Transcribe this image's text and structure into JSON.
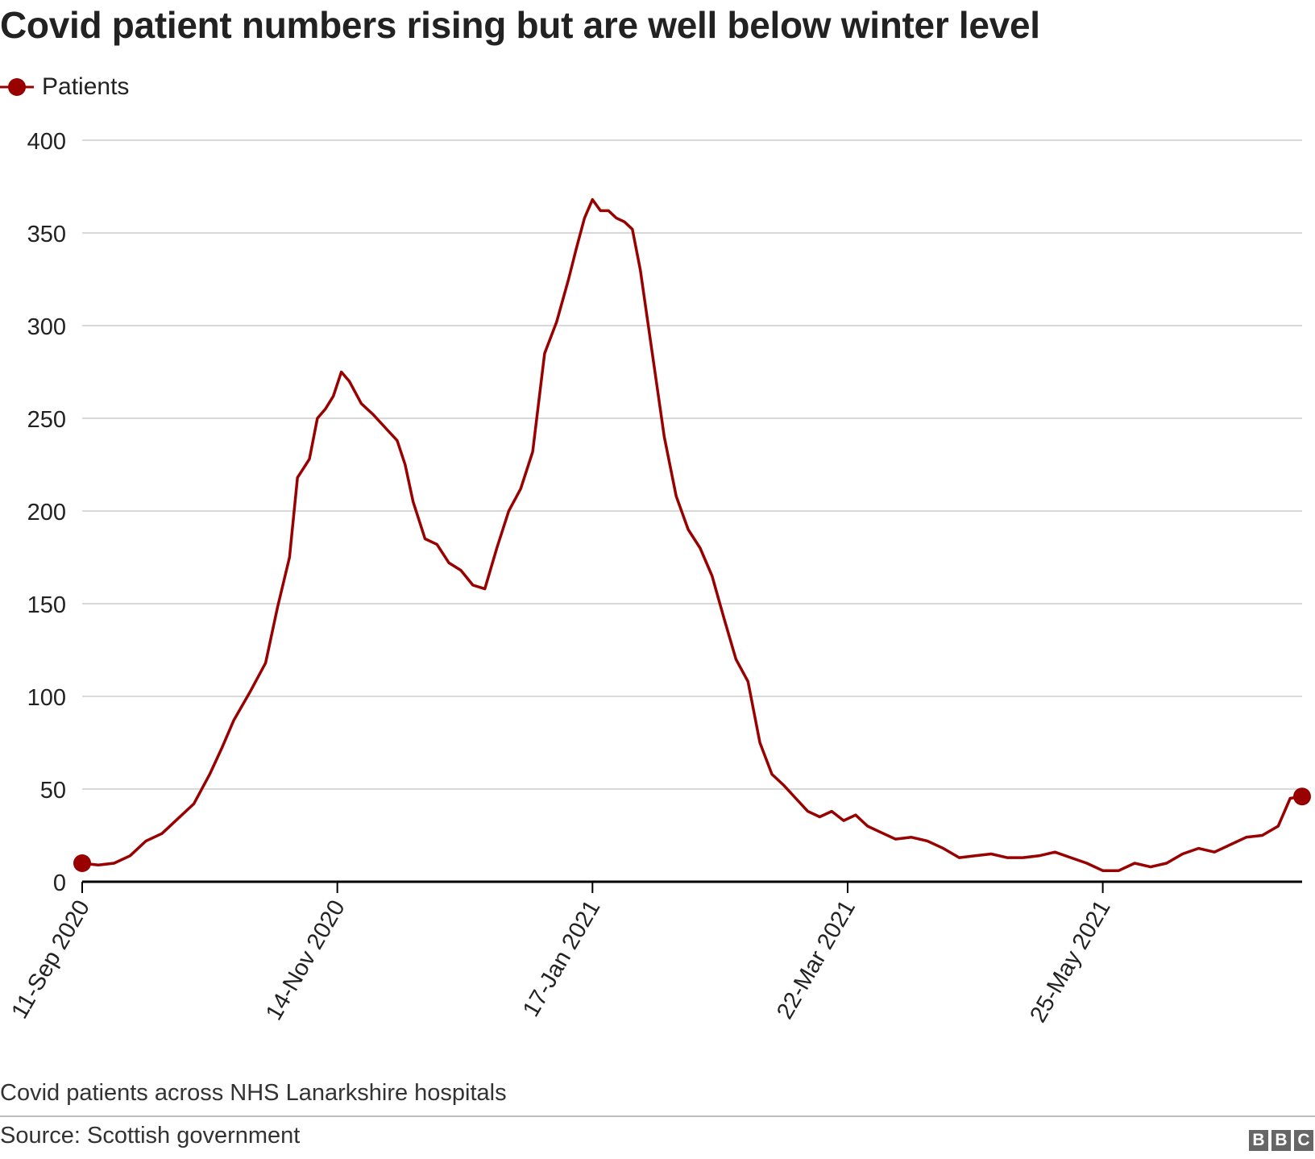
{
  "colors": {
    "series": "#990000",
    "grid": "#d9d9d9",
    "axis": "#000000",
    "text": "#222222"
  },
  "chart_data": {
    "type": "line",
    "title": "Covid patient numbers rising but are well below winter level",
    "subtitle": "Covid patients across NHS Lanarkshire hospitals",
    "source": "Source: Scottish government",
    "legend": {
      "position": "top-left",
      "entries": [
        "Patients"
      ]
    },
    "xlabel": "",
    "ylabel": "",
    "ylim": [
      0,
      400
    ],
    "yticks": [
      0,
      50,
      100,
      150,
      200,
      250,
      300,
      350,
      400
    ],
    "xticks": [
      "11-Sep 2020",
      "14-Nov 2020",
      "17-Jan 2021",
      "22-Mar 2021",
      "25-May 2021"
    ],
    "grid": true,
    "x_start": "11-Sep 2020",
    "x_end": "14-Jul 2021",
    "series": [
      {
        "name": "Patients",
        "x": [
          "11-Sep 2020",
          "15-Sep 2020",
          "19-Sep 2020",
          "23-Sep 2020",
          "27-Sep 2020",
          "1-Oct 2020",
          "5-Oct 2020",
          "9-Oct 2020",
          "13-Oct 2020",
          "16-Oct 2020",
          "19-Oct 2020",
          "23-Oct 2020",
          "27-Oct 2020",
          "30-Oct 2020",
          "2-Nov 2020",
          "4-Nov 2020",
          "7-Nov 2020",
          "9-Nov 2020",
          "11-Nov 2020",
          "13-Nov 2020",
          "15-Nov 2020",
          "17-Nov 2020",
          "20-Nov 2020",
          "23-Nov 2020",
          "26-Nov 2020",
          "29-Nov 2020",
          "1-Dec 2020",
          "3-Dec 2020",
          "6-Dec 2020",
          "9-Dec 2020",
          "12-Dec 2020",
          "15-Dec 2020",
          "18-Dec 2020",
          "21-Dec 2020",
          "24-Dec 2020",
          "27-Dec 2020",
          "30-Dec 2020",
          "2-Jan 2021",
          "5-Jan 2021",
          "8-Jan 2021",
          "11-Jan 2021",
          "13-Jan 2021",
          "15-Jan 2021",
          "17-Jan 2021",
          "19-Jan 2021",
          "21-Jan 2021",
          "23-Jan 2021",
          "25-Jan 2021",
          "27-Jan 2021",
          "29-Jan 2021",
          "31-Jan 2021",
          "2-Feb 2021",
          "4-Feb 2021",
          "7-Feb 2021",
          "10-Feb 2021",
          "13-Feb 2021",
          "16-Feb 2021",
          "19-Feb 2021",
          "22-Feb 2021",
          "25-Feb 2021",
          "28-Feb 2021",
          "3-Mar 2021",
          "6-Mar 2021",
          "9-Mar 2021",
          "12-Mar 2021",
          "15-Mar 2021",
          "18-Mar 2021",
          "21-Mar 2021",
          "24-Mar 2021",
          "27-Mar 2021",
          "30-Mar 2021",
          "3-Apr 2021",
          "7-Apr 2021",
          "11-Apr 2021",
          "15-Apr 2021",
          "19-Apr 2021",
          "23-Apr 2021",
          "27-Apr 2021",
          "1-May 2021",
          "5-May 2021",
          "9-May 2021",
          "13-May 2021",
          "17-May 2021",
          "21-May 2021",
          "25-May 2021",
          "29-May 2021",
          "2-Jun 2021",
          "6-Jun 2021",
          "10-Jun 2021",
          "14-Jun 2021",
          "18-Jun 2021",
          "22-Jun 2021",
          "26-Jun 2021",
          "30-Jun 2021",
          "4-Jul 2021",
          "8-Jul 2021",
          "11-Jul 2021",
          "14-Jul 2021"
        ],
        "values": [
          10,
          9,
          10,
          14,
          22,
          26,
          34,
          42,
          58,
          72,
          87,
          102,
          118,
          148,
          175,
          218,
          228,
          250,
          255,
          262,
          275,
          270,
          258,
          252,
          245,
          238,
          225,
          205,
          185,
          182,
          172,
          168,
          160,
          158,
          180,
          200,
          212,
          232,
          285,
          302,
          325,
          342,
          358,
          368,
          362,
          362,
          358,
          356,
          352,
          330,
          300,
          270,
          240,
          208,
          190,
          180,
          165,
          142,
          120,
          108,
          75,
          58,
          52,
          45,
          38,
          35,
          38,
          33,
          36,
          30,
          27,
          23,
          24,
          22,
          18,
          13,
          14,
          15,
          13,
          13,
          14,
          16,
          13,
          10,
          6,
          6,
          10,
          8,
          10,
          15,
          18,
          16,
          20,
          24,
          25,
          30,
          45,
          46
        ]
      }
    ]
  }
}
